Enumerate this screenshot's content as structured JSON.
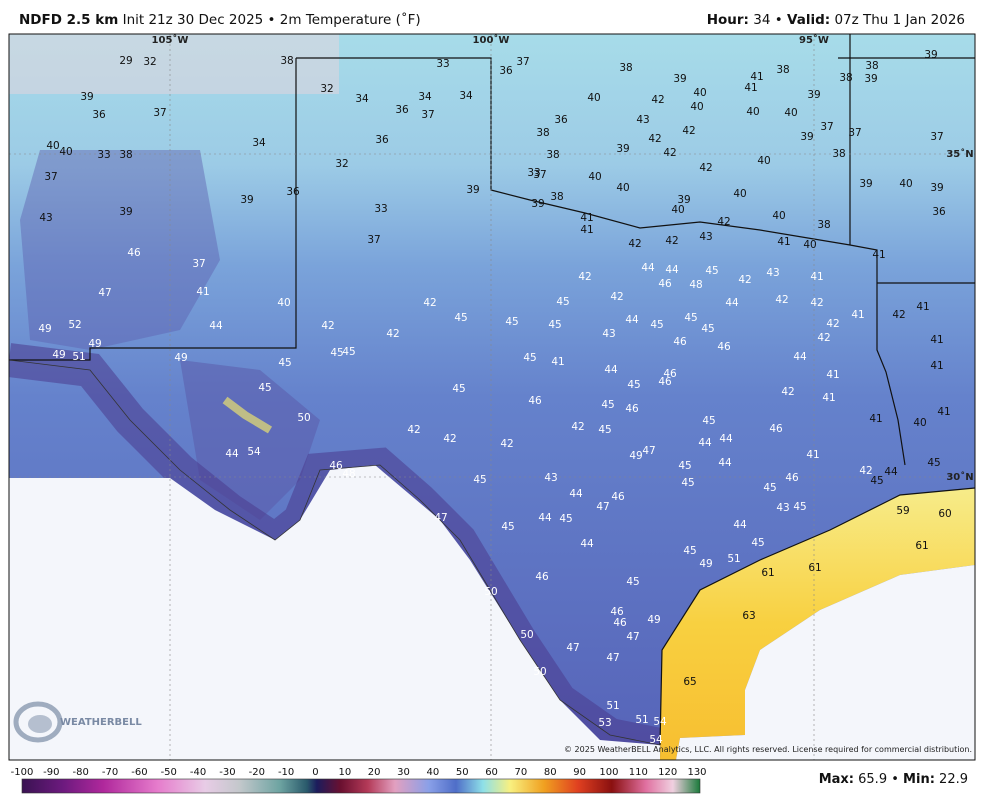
{
  "header": {
    "title": "NDFD 2.5 km",
    "subtitle": "Init 21z 30 Dec 2025 • 2m Temperature (˚F)",
    "hour_label": "Hour:",
    "hour": 34,
    "separator": "•",
    "valid_label": "Valid:",
    "valid": "07z Thu 1 Jan 2026"
  },
  "map": {
    "longitudes": [
      "105˚W",
      "100˚W",
      "95˚W"
    ],
    "latitudes": [
      "35˚N",
      "30˚N"
    ],
    "temperatures": [
      29,
      32,
      38,
      33,
      36,
      37,
      38,
      39,
      41,
      38,
      41,
      38,
      38,
      39,
      39,
      39,
      36,
      37,
      32,
      34,
      36,
      34,
      37,
      34,
      40,
      42,
      40,
      40,
      39,
      40,
      40,
      43,
      42,
      37,
      37,
      37,
      38,
      36,
      42,
      39,
      40,
      40,
      33,
      38,
      34,
      36,
      32,
      38,
      39,
      42,
      38,
      40,
      42,
      37,
      37,
      33,
      40,
      40,
      39,
      40,
      39,
      43,
      39,
      39,
      36,
      33,
      39,
      38,
      39,
      39,
      40,
      40,
      36,
      41,
      41,
      42,
      40,
      38,
      43,
      42,
      42,
      41,
      40,
      41,
      37,
      46,
      37,
      44,
      44,
      45,
      42,
      42,
      43,
      41,
      46,
      48,
      47,
      41,
      40,
      42,
      45,
      42,
      44,
      42,
      42,
      41,
      42,
      41,
      49,
      52,
      44,
      42,
      42,
      45,
      45,
      45,
      43,
      44,
      45,
      45,
      45,
      42,
      42,
      49,
      51,
      49,
      49,
      45,
      45,
      45,
      46,
      46,
      45,
      41,
      44,
      44,
      41,
      45,
      45,
      46,
      46,
      45,
      41,
      42,
      41,
      41,
      50,
      46,
      45,
      46,
      45,
      41,
      40,
      41,
      42,
      42,
      42,
      42,
      45,
      44,
      44,
      46,
      44,
      54,
      49,
      47,
      41,
      44,
      45,
      45,
      46,
      48,
      45,
      43,
      45,
      46,
      45,
      42,
      44,
      45,
      44,
      46,
      47,
      43,
      45,
      47,
      45,
      44,
      45,
      44,
      59,
      60,
      44,
      45,
      45,
      49,
      51,
      61,
      46,
      45,
      61,
      61,
      50,
      46,
      46,
      49,
      63,
      50,
      47,
      47,
      47,
      50,
      65,
      51,
      53,
      51,
      54,
      54
    ],
    "logo": "WEATHERBELL",
    "copyright": "© 2025 WeatherBELL Analytics, LLC. All rights reserved. License required for commercial distribution."
  },
  "colorbar": {
    "ticks": [
      -100,
      -90,
      -80,
      -70,
      -60,
      -50,
      -40,
      -30,
      -20,
      -10,
      0,
      10,
      20,
      30,
      40,
      50,
      60,
      70,
      80,
      90,
      100,
      110,
      120,
      130
    ]
  },
  "stats": {
    "max_label": "Max:",
    "max": 65.9,
    "separator": "•",
    "min_label": "Min:",
    "min": 22.9
  }
}
